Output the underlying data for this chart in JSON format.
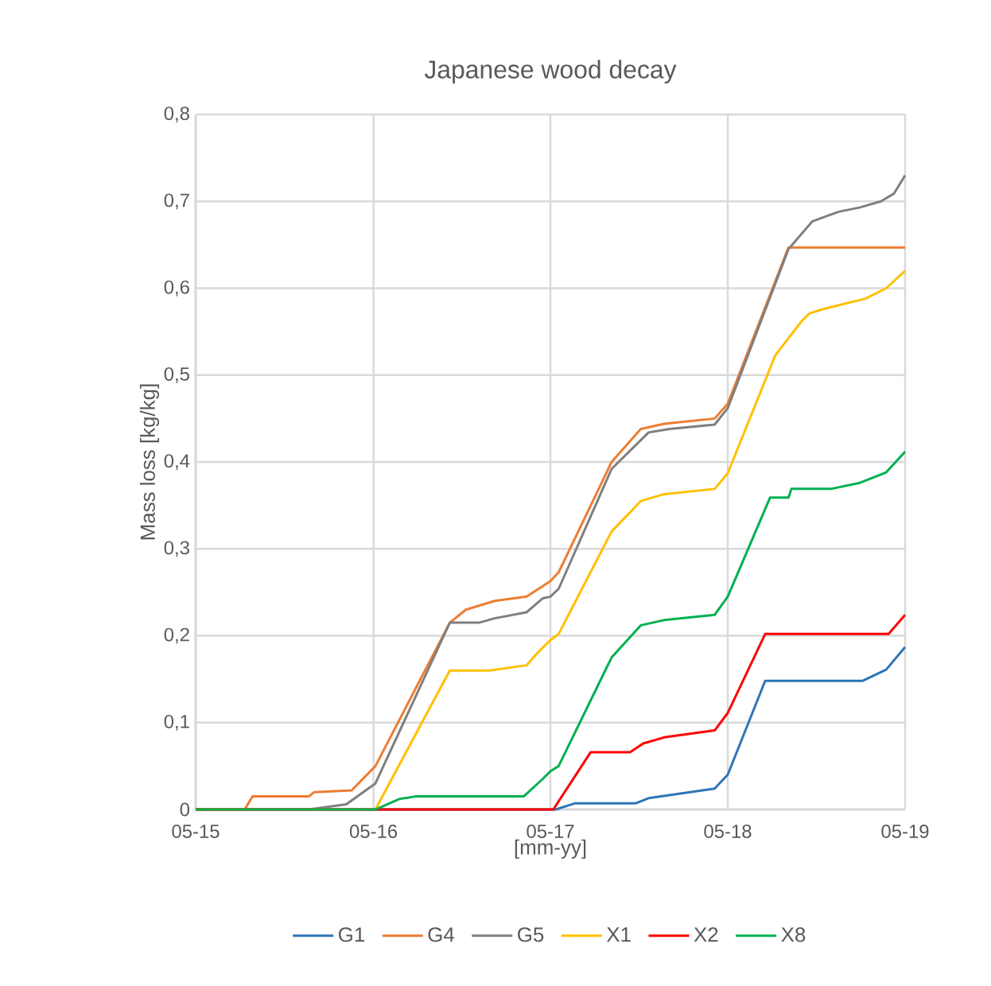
{
  "chart_data": {
    "type": "line",
    "title": "Japanese wood decay",
    "xlabel": "[mm-yy]",
    "ylabel": "Mass loss [kg/kg]",
    "xlim": [
      "2015-05-01",
      "2019-05-01"
    ],
    "xticks": [
      {
        "value": "2015-05-01",
        "label": "05-15"
      },
      {
        "value": "2016-05-01",
        "label": "05-16"
      },
      {
        "value": "2017-05-01",
        "label": "05-17"
      },
      {
        "value": "2018-05-01",
        "label": "05-18"
      },
      {
        "value": "2019-05-01",
        "label": "05-19"
      }
    ],
    "ylim": [
      0,
      0.8
    ],
    "yticks": [
      0,
      {
        "value": 0.1,
        "label": "0,1"
      },
      {
        "value": 0.2,
        "label": "0,2"
      },
      {
        "value": 0.3,
        "label": "0,3"
      },
      {
        "value": 0.4,
        "label": "0,4"
      },
      {
        "value": 0.5,
        "label": "0,5"
      },
      {
        "value": 0.6,
        "label": "0,6"
      },
      {
        "value": 0.7,
        "label": "0,7"
      },
      {
        "value": 0.8,
        "label": "0,8"
      }
    ],
    "grid": true,
    "legend": "bottom",
    "marker": "none",
    "line_style": "solid",
    "series": [
      {
        "name": "G1",
        "color": "#2e75b6",
        "x": [
          "2015-05-01",
          "2017-05-12",
          "2017-06-20",
          "2017-10-23",
          "2017-11-19",
          "2018-04-04",
          "2018-05-01",
          "2018-07-17",
          "2019-02-02",
          "2019-03-23",
          "2019-05-01"
        ],
        "values": [
          0,
          0,
          0.007,
          0.007,
          0.013,
          0.024,
          0.04,
          0.148,
          0.148,
          0.161,
          0.187
        ]
      },
      {
        "name": "G4",
        "color": "#ed7d31",
        "x": [
          "2015-05-01",
          "2015-08-10",
          "2015-08-26",
          "2015-12-20",
          "2015-12-31",
          "2016-03-17",
          "2016-05-05",
          "2016-10-05",
          "2016-11-07",
          "2017-01-06",
          "2017-03-13",
          "2017-04-15",
          "2017-05-01",
          "2017-05-18",
          "2017-09-04",
          "2017-11-03",
          "2017-12-21",
          "2018-04-04",
          "2018-05-01",
          "2018-09-03",
          "2019-05-01"
        ],
        "values": [
          0,
          0,
          0.015,
          0.015,
          0.02,
          0.022,
          0.05,
          0.215,
          0.23,
          0.24,
          0.245,
          0.257,
          0.263,
          0.273,
          0.4,
          0.438,
          0.444,
          0.45,
          0.467,
          0.647,
          0.647
        ]
      },
      {
        "name": "G5",
        "color": "#7f7f7f",
        "x": [
          "2015-05-01",
          "2015-12-20",
          "2016-03-06",
          "2016-05-05",
          "2016-10-05",
          "2016-12-04",
          "2017-01-06",
          "2017-03-13",
          "2017-04-15",
          "2017-05-01",
          "2017-05-18",
          "2017-09-04",
          "2017-11-19",
          "2018-01-01",
          "2018-04-04",
          "2018-05-01",
          "2018-09-03",
          "2018-10-22",
          "2018-12-15",
          "2019-01-28",
          "2019-03-12",
          "2019-04-08",
          "2019-05-01"
        ],
        "values": [
          0,
          0,
          0.006,
          0.03,
          0.215,
          0.215,
          0.22,
          0.227,
          0.243,
          0.245,
          0.254,
          0.392,
          0.434,
          0.438,
          0.443,
          0.462,
          0.645,
          0.677,
          0.688,
          0.693,
          0.7,
          0.709,
          0.73
        ]
      },
      {
        "name": "X1",
        "color": "#ffc000",
        "x": [
          "2015-05-01",
          "2016-05-05",
          "2016-10-05",
          "2016-12-26",
          "2017-03-13",
          "2017-04-04",
          "2017-05-01",
          "2017-05-18",
          "2017-09-04",
          "2017-11-03",
          "2017-12-21",
          "2018-04-04",
          "2018-05-01",
          "2018-08-07",
          "2018-09-30",
          "2018-10-16",
          "2018-11-13",
          "2019-02-08",
          "2019-03-23",
          "2019-05-01"
        ],
        "values": [
          0,
          0,
          0.16,
          0.16,
          0.166,
          0.18,
          0.195,
          0.202,
          0.32,
          0.355,
          0.363,
          0.369,
          0.387,
          0.523,
          0.562,
          0.571,
          0.576,
          0.588,
          0.6,
          0.62
        ]
      },
      {
        "name": "X2",
        "color": "#ff0000",
        "x": [
          "2015-05-01",
          "2017-05-07",
          "2017-07-23",
          "2017-10-12",
          "2017-11-08",
          "2017-12-21",
          "2018-04-04",
          "2018-05-01",
          "2018-07-17",
          "2019-03-28",
          "2019-05-01"
        ],
        "values": [
          0,
          0,
          0.066,
          0.066,
          0.076,
          0.083,
          0.091,
          0.111,
          0.202,
          0.202,
          0.224
        ]
      },
      {
        "name": "X8",
        "color": "#00b050",
        "x": [
          "2015-05-01",
          "2016-05-05",
          "2016-06-23",
          "2016-07-26",
          "2017-03-07",
          "2017-04-15",
          "2017-05-01",
          "2017-05-18",
          "2017-09-04",
          "2017-11-03",
          "2017-12-21",
          "2018-04-04",
          "2018-05-01",
          "2018-07-27",
          "2018-09-03",
          "2018-09-09",
          "2018-11-29",
          "2019-01-28",
          "2019-03-23",
          "2019-05-01"
        ],
        "values": [
          0,
          0,
          0.012,
          0.015,
          0.015,
          0.035,
          0.044,
          0.05,
          0.175,
          0.212,
          0.218,
          0.224,
          0.245,
          0.359,
          0.359,
          0.369,
          0.369,
          0.376,
          0.388,
          0.412
        ]
      }
    ]
  }
}
